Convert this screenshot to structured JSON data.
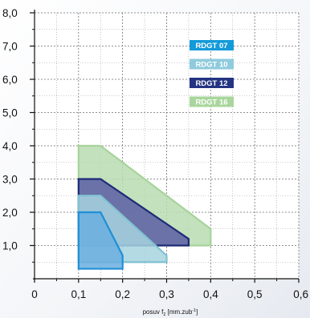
{
  "chart_data": {
    "type": "area",
    "title": "",
    "xlabel_main": "posuv f",
    "xlabel_sub": "z",
    "xlabel_unit": "[mm.zub",
    "xlabel_sup": "-1",
    "xlabel_end": "]",
    "ylabel": "",
    "xlim": [
      0,
      0.6
    ],
    "ylim": [
      0,
      8.0
    ],
    "grid": true,
    "legend_position": "top-right",
    "x_ticks": [
      {
        "value": 0,
        "label": "0"
      },
      {
        "value": 0.1,
        "label": "0,1"
      },
      {
        "value": 0.2,
        "label": "0,2"
      },
      {
        "value": 0.3,
        "label": "0,3"
      },
      {
        "value": 0.4,
        "label": "0,4"
      },
      {
        "value": 0.5,
        "label": "0,5"
      },
      {
        "value": 0.6,
        "label": "0,6"
      }
    ],
    "y_ticks": [
      {
        "value": 1,
        "label": "1,0"
      },
      {
        "value": 2,
        "label": "2,0"
      },
      {
        "value": 3,
        "label": "3,0"
      },
      {
        "value": 4,
        "label": "4,0"
      },
      {
        "value": 5,
        "label": "5,0"
      },
      {
        "value": 6,
        "label": "6,0"
      },
      {
        "value": 7,
        "label": "7,0"
      },
      {
        "value": 8,
        "label": "8,0"
      }
    ],
    "series": [
      {
        "name": "RDGT 16",
        "fill": "#b9dcb1",
        "stroke": "#a6d49a",
        "legend_color": "#a8d69c",
        "polygon": [
          [
            0.1,
            4.0
          ],
          [
            0.15,
            4.0
          ],
          [
            0.4,
            1.5
          ],
          [
            0.4,
            1.0
          ],
          [
            0.1,
            1.0
          ]
        ]
      },
      {
        "name": "RDGT 12",
        "fill": "#5a5ea3",
        "stroke": "#1f2b78",
        "legend_color": "#243382",
        "polygon": [
          [
            0.1,
            3.0
          ],
          [
            0.15,
            3.0
          ],
          [
            0.35,
            1.2
          ],
          [
            0.35,
            1.0
          ],
          [
            0.1,
            1.0
          ]
        ]
      },
      {
        "name": "RDGT 10",
        "fill": "#a7d4df",
        "stroke": "#7fc2d2",
        "legend_color": "#8fcbdc",
        "polygon": [
          [
            0.1,
            2.5
          ],
          [
            0.15,
            2.5
          ],
          [
            0.3,
            0.7
          ],
          [
            0.3,
            0.5
          ],
          [
            0.1,
            0.5
          ]
        ]
      },
      {
        "name": "RDGT 07",
        "fill": "#6aaedf",
        "stroke": "#1f8fd6",
        "legend_color": "#149ad9",
        "polygon": [
          [
            0.1,
            2.0
          ],
          [
            0.15,
            2.0
          ],
          [
            0.2,
            0.7
          ],
          [
            0.2,
            0.3
          ],
          [
            0.1,
            0.3
          ]
        ]
      }
    ],
    "legend_order": [
      "RDGT 07",
      "RDGT 10",
      "RDGT 12",
      "RDGT 16"
    ]
  }
}
